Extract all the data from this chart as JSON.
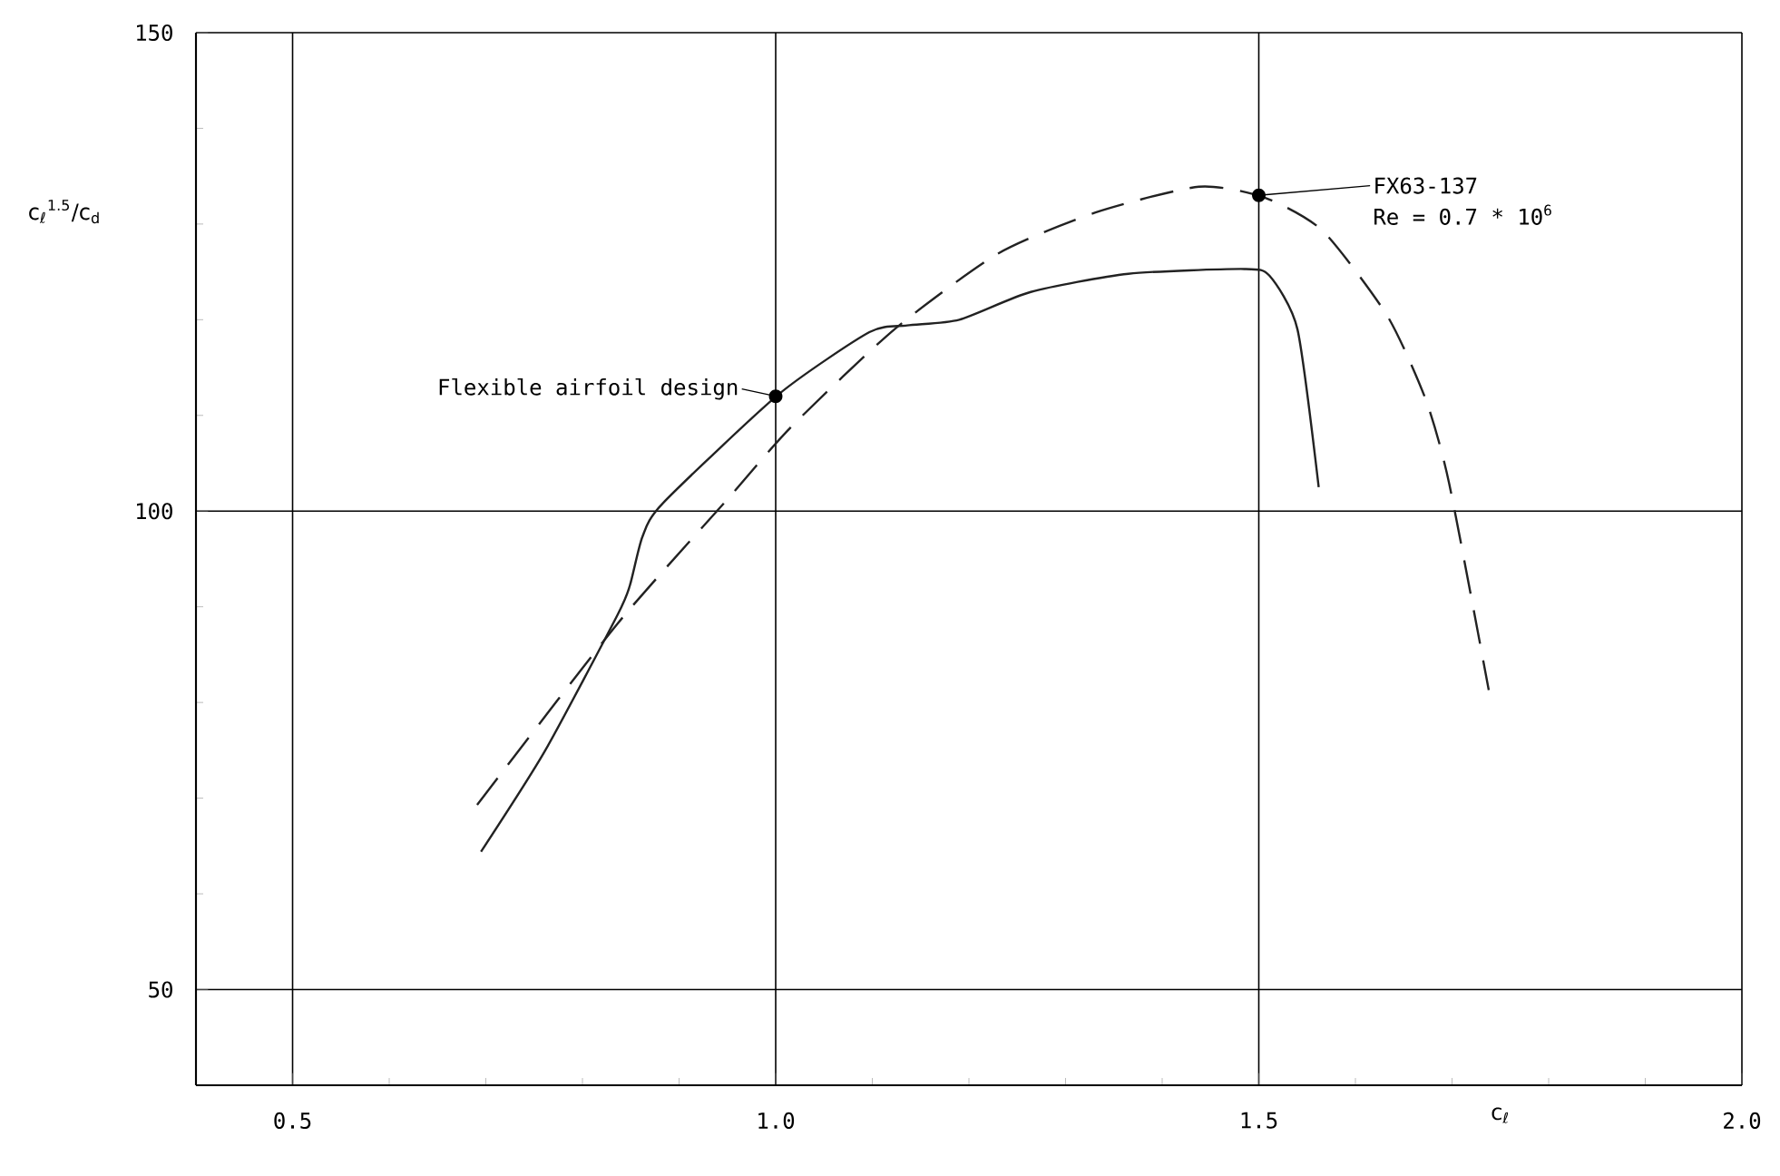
{
  "chart_data": {
    "type": "line",
    "xlabel": "c$_{ℓ}$",
    "ylabel": "c$_{ℓ}$$^{1.5}$/c$_{d}$",
    "xlim": [
      0.4,
      2.0
    ],
    "ylim": [
      40,
      150
    ],
    "xticks": [
      0.5,
      {
        "value": 1.0,
        "label": "1.0"
      },
      1.5,
      {
        "value": 2.0,
        "label": "2.0"
      }
    ],
    "yticks": [
      50,
      100,
      150
    ],
    "grid": true,
    "marker": "none",
    "series": [
      {
        "color": "#222222",
        "line_style": "solid",
        "x": [
          0.695,
          0.761,
          0.836,
          0.849,
          0.862,
          0.883,
          1.003,
          1.097,
          1.136,
          1.19,
          1.264,
          1.365,
          1.485,
          1.511,
          1.54,
          1.562
        ],
        "values": [
          64.4,
          74.9,
          89.1,
          92.2,
          97.3,
          100.8,
          112.2,
          118.7,
          119.4,
          120,
          122.9,
          124.8,
          125.3,
          124.6,
          119,
          102.5
        ]
      },
      {
        "color": "#222222",
        "line_style": "dashed",
        "x": [
          0.691,
          0.836,
          0.948,
          1.016,
          1.123,
          1.23,
          1.331,
          1.438,
          1.505,
          1.566,
          1.633,
          1.673,
          1.697,
          1.738
        ],
        "values": [
          69.3,
          88.2,
          101,
          108.8,
          119,
          126.9,
          131.2,
          133.9,
          132.8,
          129.3,
          120.4,
          111.6,
          102.9,
          81.3
        ]
      }
    ],
    "annotations": [
      {
        "text": "Flexible airfoil design",
        "x": 1.0,
        "y": 112
      },
      {
        "text": "FX63-137",
        "x": 1.5,
        "y": 133
      },
      "Re = 0.7 * 10$^{6}$"
    ]
  }
}
